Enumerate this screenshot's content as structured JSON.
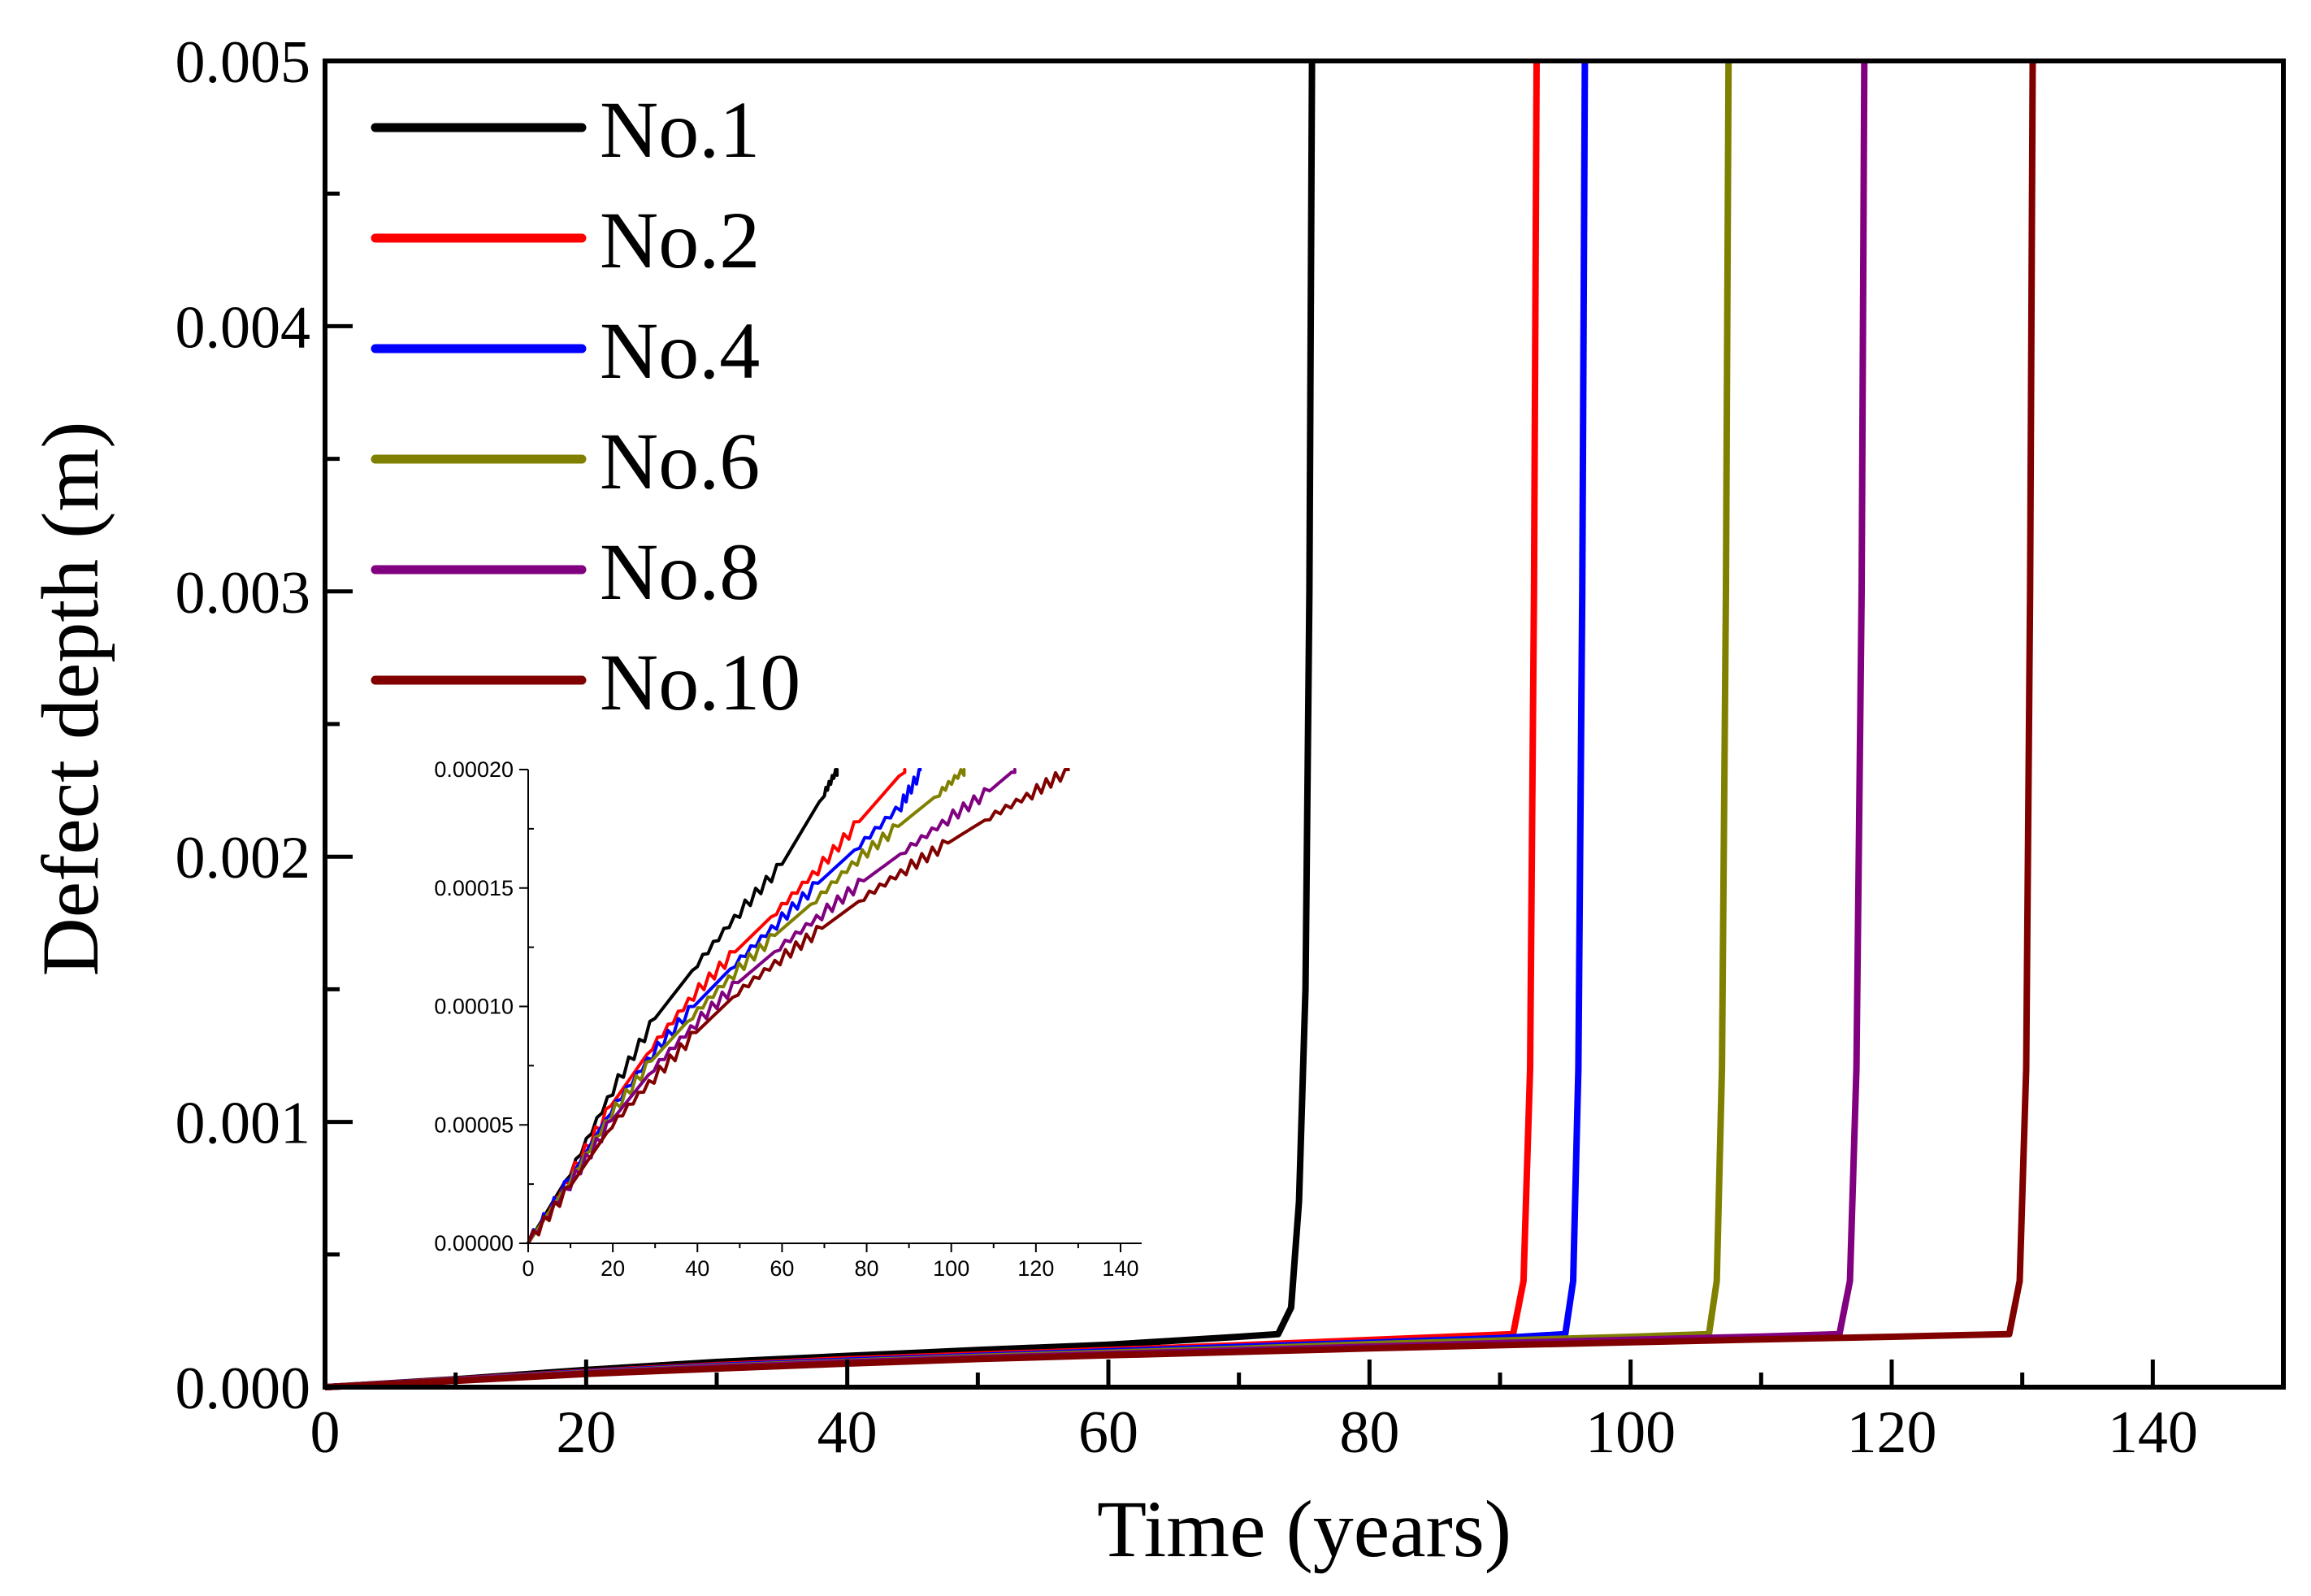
{
  "chart_data": {
    "type": "line",
    "title": "",
    "xlabel": "Time (years)",
    "ylabel": "Defect depth (m)",
    "xlim": [
      0,
      150
    ],
    "ylim": [
      0,
      0.005
    ],
    "xticks": [
      0,
      20,
      40,
      60,
      80,
      100,
      120,
      140
    ],
    "xtick_labels": [
      "0",
      "20",
      "40",
      "60",
      "80",
      "100",
      "120",
      "140"
    ],
    "yticks": [
      0,
      0.001,
      0.002,
      0.003,
      0.004,
      0.005
    ],
    "ytick_labels": [
      "0.000",
      "0.001",
      "0.002",
      "0.003",
      "0.004",
      "0.005"
    ],
    "legend_position": "top-left",
    "series": [
      {
        "name": "No.1",
        "color": "#000000",
        "points": [
          [
            0,
            0
          ],
          [
            10,
            3e-05
          ],
          [
            20,
            6.5e-05
          ],
          [
            30,
            9.5e-05
          ],
          [
            40,
            0.000118
          ],
          [
            50,
            0.00014
          ],
          [
            60,
            0.00016
          ],
          [
            70,
            0.00019
          ],
          [
            73,
            0.0002
          ],
          [
            74,
            0.0003
          ],
          [
            74.6,
            0.0007
          ],
          [
            75.1,
            0.0015
          ],
          [
            75.4,
            0.003
          ],
          [
            75.6,
            0.005
          ]
        ]
      },
      {
        "name": "No.2",
        "color": "#ff0000",
        "points": [
          [
            0,
            0
          ],
          [
            10,
            2.8e-05
          ],
          [
            20,
            5.8e-05
          ],
          [
            30,
            8.3e-05
          ],
          [
            40,
            0.000105
          ],
          [
            50,
            0.000123
          ],
          [
            60,
            0.00014
          ],
          [
            70,
            0.000158
          ],
          [
            80,
            0.000178
          ],
          [
            91,
            0.0002
          ],
          [
            91.8,
            0.0004
          ],
          [
            92.3,
            0.0012
          ],
          [
            92.6,
            0.003
          ],
          [
            92.8,
            0.005
          ]
        ]
      },
      {
        "name": "No.4",
        "color": "#0000ff",
        "points": [
          [
            0,
            0
          ],
          [
            10,
            2.7e-05
          ],
          [
            20,
            5.6e-05
          ],
          [
            30,
            8e-05
          ],
          [
            40,
            0.0001
          ],
          [
            50,
            0.000118
          ],
          [
            60,
            0.000135
          ],
          [
            70,
            0.000152
          ],
          [
            80,
            0.000168
          ],
          [
            90,
            0.000185
          ],
          [
            95,
            0.0002
          ],
          [
            95.6,
            0.0004
          ],
          [
            96,
            0.0012
          ],
          [
            96.3,
            0.003
          ],
          [
            96.5,
            0.005
          ]
        ]
      },
      {
        "name": "No.6",
        "color": "#808000",
        "points": [
          [
            0,
            0
          ],
          [
            10,
            2.6e-05
          ],
          [
            20,
            5.4e-05
          ],
          [
            30,
            7.7e-05
          ],
          [
            40,
            9.6e-05
          ],
          [
            50,
            0.000114
          ],
          [
            60,
            0.00013
          ],
          [
            70,
            0.000145
          ],
          [
            80,
            0.000162
          ],
          [
            90,
            0.000176
          ],
          [
            100,
            0.00019
          ],
          [
            106,
            0.0002
          ],
          [
            106.6,
            0.0004
          ],
          [
            107,
            0.0012
          ],
          [
            107.3,
            0.003
          ],
          [
            107.5,
            0.005
          ]
        ]
      },
      {
        "name": "No.8",
        "color": "#800080",
        "points": [
          [
            0,
            0
          ],
          [
            10,
            2.5e-05
          ],
          [
            20,
            5.2e-05
          ],
          [
            30,
            7.4e-05
          ],
          [
            40,
            9.3e-05
          ],
          [
            50,
            0.00011
          ],
          [
            60,
            0.000125
          ],
          [
            70,
            0.000139
          ],
          [
            80,
            0.000153
          ],
          [
            90,
            0.000166
          ],
          [
            100,
            0.000179
          ],
          [
            110,
            0.000191
          ],
          [
            116,
            0.0002
          ],
          [
            116.8,
            0.0004
          ],
          [
            117.3,
            0.0012
          ],
          [
            117.7,
            0.003
          ],
          [
            117.9,
            0.005
          ]
        ]
      },
      {
        "name": "No.10",
        "color": "#800000",
        "points": [
          [
            0,
            0
          ],
          [
            10,
            2.4e-05
          ],
          [
            20,
            5e-05
          ],
          [
            30,
            7e-05
          ],
          [
            40,
            8.9e-05
          ],
          [
            50,
            0.000106
          ],
          [
            60,
            0.00012
          ],
          [
            70,
            0.000133
          ],
          [
            80,
            0.000146
          ],
          [
            90,
            0.000158
          ],
          [
            100,
            0.000169
          ],
          [
            110,
            0.00018
          ],
          [
            120,
            0.00019
          ],
          [
            129,
            0.0002
          ],
          [
            129.8,
            0.0004
          ],
          [
            130.3,
            0.0012
          ],
          [
            130.6,
            0.003
          ],
          [
            130.8,
            0.005
          ]
        ]
      }
    ],
    "inset": {
      "type": "line",
      "xlim": [
        0,
        145
      ],
      "ylim": [
        0,
        0.0002
      ],
      "xticks": [
        0,
        20,
        40,
        60,
        80,
        100,
        120,
        140
      ],
      "xtick_labels": [
        "0",
        "20",
        "40",
        "60",
        "80",
        "100",
        "120",
        "140"
      ],
      "yticks": [
        0,
        5e-05,
        0.0001,
        0.00015,
        0.0002
      ],
      "ytick_labels": [
        "0.00000",
        "0.00005",
        "0.00010",
        "0.00015",
        "0.00020"
      ]
    }
  }
}
